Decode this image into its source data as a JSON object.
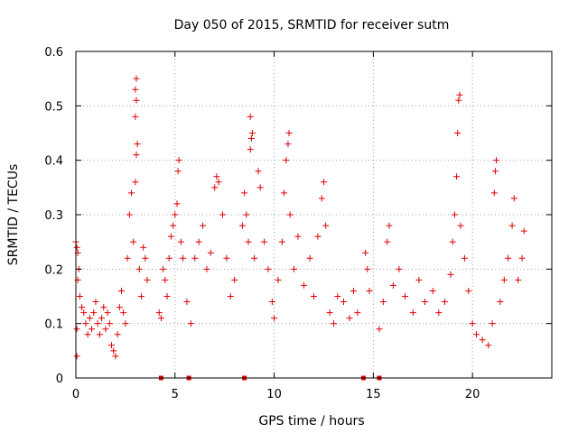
{
  "chart_data": {
    "type": "scatter",
    "title": "Day 050 of 2015, SRMTID for receiver sutm",
    "xlabel": "GPS time / hours",
    "ylabel": "SRMTID / TECUs",
    "xlim": [
      0,
      24
    ],
    "ylim": [
      0,
      0.6
    ],
    "xticks": [
      0,
      5,
      10,
      15,
      20
    ],
    "yticks": [
      0,
      0.1,
      0.2,
      0.3,
      0.4,
      0.5,
      0.6
    ],
    "xtick_labels": [
      "0",
      "5",
      "10",
      "15",
      "20"
    ],
    "ytick_labels": [
      "0",
      "0.1",
      "0.2",
      "0.3",
      "0.4",
      "0.5",
      "0.6"
    ],
    "grid": true,
    "legend": "none",
    "marker": "plus",
    "color": "#e00000",
    "gap_markers_x": [
      4.3,
      5.7,
      8.5,
      14.5,
      15.3
    ],
    "series": [
      {
        "name": "SRMTID",
        "points": [
          [
            0.0,
            0.25
          ],
          [
            0.05,
            0.24
          ],
          [
            0.1,
            0.23
          ],
          [
            0.15,
            0.2
          ],
          [
            0.1,
            0.18
          ],
          [
            0.05,
            0.09
          ],
          [
            0.05,
            0.04
          ],
          [
            0.2,
            0.15
          ],
          [
            0.3,
            0.13
          ],
          [
            0.4,
            0.12
          ],
          [
            0.5,
            0.1
          ],
          [
            0.6,
            0.08
          ],
          [
            0.7,
            0.11
          ],
          [
            0.8,
            0.09
          ],
          [
            0.9,
            0.12
          ],
          [
            1.0,
            0.14
          ],
          [
            1.1,
            0.1
          ],
          [
            1.2,
            0.08
          ],
          [
            1.3,
            0.11
          ],
          [
            1.4,
            0.13
          ],
          [
            1.5,
            0.09
          ],
          [
            1.6,
            0.12
          ],
          [
            1.7,
            0.1
          ],
          [
            1.8,
            0.06
          ],
          [
            1.9,
            0.05
          ],
          [
            2.0,
            0.04
          ],
          [
            2.1,
            0.08
          ],
          [
            2.2,
            0.13
          ],
          [
            2.3,
            0.16
          ],
          [
            2.4,
            0.12
          ],
          [
            2.5,
            0.1
          ],
          [
            2.6,
            0.22
          ],
          [
            2.7,
            0.3
          ],
          [
            2.8,
            0.34
          ],
          [
            2.9,
            0.25
          ],
          [
            3.0,
            0.36
          ],
          [
            3.05,
            0.41
          ],
          [
            3.1,
            0.43
          ],
          [
            3.0,
            0.48
          ],
          [
            3.05,
            0.51
          ],
          [
            3.0,
            0.53
          ],
          [
            3.05,
            0.55
          ],
          [
            3.2,
            0.2
          ],
          [
            3.3,
            0.15
          ],
          [
            3.4,
            0.24
          ],
          [
            3.5,
            0.22
          ],
          [
            3.6,
            0.18
          ],
          [
            4.2,
            0.12
          ],
          [
            4.3,
            0.11
          ],
          [
            4.4,
            0.2
          ],
          [
            4.5,
            0.18
          ],
          [
            4.6,
            0.15
          ],
          [
            4.7,
            0.22
          ],
          [
            4.8,
            0.26
          ],
          [
            4.9,
            0.28
          ],
          [
            5.0,
            0.3
          ],
          [
            5.1,
            0.32
          ],
          [
            5.15,
            0.38
          ],
          [
            5.2,
            0.4
          ],
          [
            5.3,
            0.25
          ],
          [
            5.4,
            0.22
          ],
          [
            5.6,
            0.14
          ],
          [
            5.8,
            0.1
          ],
          [
            6.0,
            0.22
          ],
          [
            6.2,
            0.25
          ],
          [
            6.4,
            0.28
          ],
          [
            6.6,
            0.2
          ],
          [
            6.8,
            0.23
          ],
          [
            7.0,
            0.35
          ],
          [
            7.1,
            0.37
          ],
          [
            7.2,
            0.36
          ],
          [
            7.4,
            0.3
          ],
          [
            7.6,
            0.22
          ],
          [
            7.8,
            0.15
          ],
          [
            8.0,
            0.18
          ],
          [
            8.4,
            0.28
          ],
          [
            8.5,
            0.34
          ],
          [
            8.6,
            0.3
          ],
          [
            8.7,
            0.25
          ],
          [
            8.8,
            0.42
          ],
          [
            8.85,
            0.44
          ],
          [
            8.9,
            0.45
          ],
          [
            8.8,
            0.48
          ],
          [
            9.0,
            0.22
          ],
          [
            9.2,
            0.38
          ],
          [
            9.3,
            0.35
          ],
          [
            9.5,
            0.25
          ],
          [
            9.7,
            0.2
          ],
          [
            9.9,
            0.14
          ],
          [
            10.0,
            0.11
          ],
          [
            10.2,
            0.18
          ],
          [
            10.4,
            0.25
          ],
          [
            10.5,
            0.34
          ],
          [
            10.6,
            0.4
          ],
          [
            10.7,
            0.43
          ],
          [
            10.75,
            0.45
          ],
          [
            10.8,
            0.3
          ],
          [
            11.0,
            0.2
          ],
          [
            11.2,
            0.26
          ],
          [
            11.5,
            0.17
          ],
          [
            11.8,
            0.22
          ],
          [
            12.0,
            0.15
          ],
          [
            12.2,
            0.26
          ],
          [
            12.4,
            0.33
          ],
          [
            12.5,
            0.36
          ],
          [
            12.6,
            0.28
          ],
          [
            12.8,
            0.12
          ],
          [
            13.0,
            0.1
          ],
          [
            13.2,
            0.15
          ],
          [
            13.5,
            0.14
          ],
          [
            13.8,
            0.11
          ],
          [
            14.0,
            0.16
          ],
          [
            14.2,
            0.12
          ],
          [
            14.6,
            0.23
          ],
          [
            14.7,
            0.2
          ],
          [
            14.8,
            0.16
          ],
          [
            15.3,
            0.09
          ],
          [
            15.5,
            0.14
          ],
          [
            15.7,
            0.25
          ],
          [
            15.8,
            0.28
          ],
          [
            16.0,
            0.17
          ],
          [
            16.3,
            0.2
          ],
          [
            16.6,
            0.15
          ],
          [
            17.0,
            0.12
          ],
          [
            17.3,
            0.18
          ],
          [
            17.6,
            0.14
          ],
          [
            18.0,
            0.16
          ],
          [
            18.3,
            0.12
          ],
          [
            18.6,
            0.14
          ],
          [
            18.9,
            0.19
          ],
          [
            19.0,
            0.25
          ],
          [
            19.1,
            0.3
          ],
          [
            19.2,
            0.37
          ],
          [
            19.25,
            0.45
          ],
          [
            19.3,
            0.51
          ],
          [
            19.35,
            0.52
          ],
          [
            19.4,
            0.28
          ],
          [
            19.6,
            0.22
          ],
          [
            19.8,
            0.16
          ],
          [
            20.0,
            0.1
          ],
          [
            20.2,
            0.08
          ],
          [
            20.5,
            0.07
          ],
          [
            20.8,
            0.06
          ],
          [
            21.0,
            0.1
          ],
          [
            21.1,
            0.34
          ],
          [
            21.15,
            0.38
          ],
          [
            21.2,
            0.4
          ],
          [
            21.4,
            0.14
          ],
          [
            21.6,
            0.18
          ],
          [
            21.8,
            0.22
          ],
          [
            22.0,
            0.28
          ],
          [
            22.1,
            0.33
          ],
          [
            22.3,
            0.18
          ],
          [
            22.5,
            0.22
          ],
          [
            22.6,
            0.27
          ]
        ]
      }
    ]
  }
}
